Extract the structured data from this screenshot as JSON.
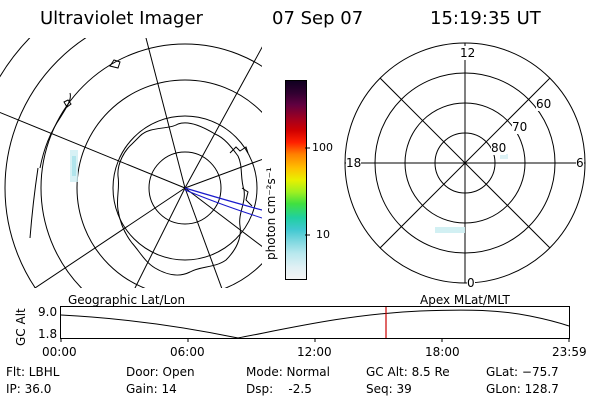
{
  "header": {
    "instrument": "Ultraviolet Imager",
    "date": "07 Sep 07",
    "time": "15:19:35 UT"
  },
  "colorbar": {
    "unit_label": "photon cm⁻²s⁻¹",
    "tick_100": "100",
    "tick_10": "10",
    "colors": [
      "#f4f4f4",
      "#e0f0f4",
      "#b8e8ee",
      "#7fd8e0",
      "#40c8d0",
      "#20d0a0",
      "#40e040",
      "#a0f020",
      "#e8f000",
      "#ffc000",
      "#ff8000",
      "#ff2000",
      "#d00000",
      "#a00020",
      "#600040",
      "#300030",
      "#100020"
    ]
  },
  "left_map": {
    "caption": "Geographic Lat/Lon"
  },
  "right_map": {
    "caption": "Apex MLat/MLT",
    "mlt_12": "12",
    "mlt_18": "18",
    "mlt_6": "6",
    "mlt_0": "0",
    "lat_60": "60",
    "lat_70": "70",
    "lat_80": "80"
  },
  "altitude_plot": {
    "axis_label": "GC Alt",
    "y_top": "9.0",
    "y_bottom": "1.8",
    "x_ticks": [
      "00:00",
      "06:00",
      "12:00",
      "18:00",
      "23:59"
    ],
    "current_marker_color": "#cc0000"
  },
  "status": {
    "flt": "Flt: LBHL",
    "ip": "IP: 36.0",
    "door": "Door: Open",
    "gain": "Gain: 14",
    "mode": "Mode: Normal",
    "dsp": "Dsp:    -2.5",
    "gc_alt": "GC Alt: 8.5 Re",
    "seq": "Seq: 39",
    "glat": "GLat: −75.7",
    "glon": "GLon: 128.7"
  }
}
